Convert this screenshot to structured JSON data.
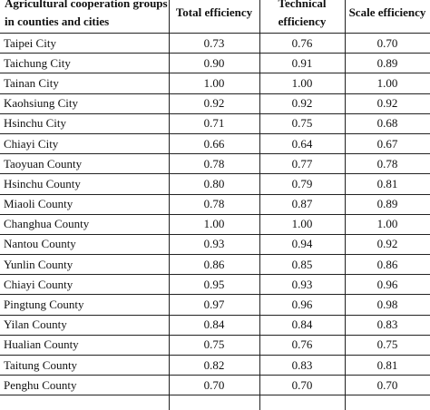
{
  "table": {
    "headers": [
      "Agricultural cooperation groups in counties and cities",
      "Total efficiency",
      "Technical efficiency",
      "Scale efficiency"
    ],
    "rows": [
      [
        "Taipei City",
        "0.73",
        "0.76",
        "0.70"
      ],
      [
        "Taichung City",
        "0.90",
        "0.91",
        "0.89"
      ],
      [
        "Tainan City",
        "1.00",
        "1.00",
        "1.00"
      ],
      [
        "Kaohsiung City",
        "0.92",
        "0.92",
        "0.92"
      ],
      [
        "Hsinchu City",
        "0.71",
        "0.75",
        "0.68"
      ],
      [
        "Chiayi City",
        "0.66",
        "0.64",
        "0.67"
      ],
      [
        "Taoyuan County",
        "0.78",
        "0.77",
        "0.78"
      ],
      [
        "Hsinchu County",
        "0.80",
        "0.79",
        "0.81"
      ],
      [
        "Miaoli County",
        "0.78",
        "0.87",
        "0.89"
      ],
      [
        "Changhua County",
        "1.00",
        "1.00",
        "1.00"
      ],
      [
        "Nantou County",
        "0.93",
        "0.94",
        "0.92"
      ],
      [
        "Yunlin County",
        "0.86",
        "0.85",
        "0.86"
      ],
      [
        "Chiayi County",
        "0.95",
        "0.93",
        "0.96"
      ],
      [
        "Pingtung County",
        "0.97",
        "0.96",
        "0.98"
      ],
      [
        "Yilan County",
        "0.84",
        "0.84",
        "0.83"
      ],
      [
        "Hualian County",
        "0.75",
        "0.76",
        "0.75"
      ],
      [
        "Taitung County",
        "0.82",
        "0.83",
        "0.81"
      ],
      [
        "Penghu County",
        "0.70",
        "0.70",
        "0.70"
      ]
    ]
  }
}
